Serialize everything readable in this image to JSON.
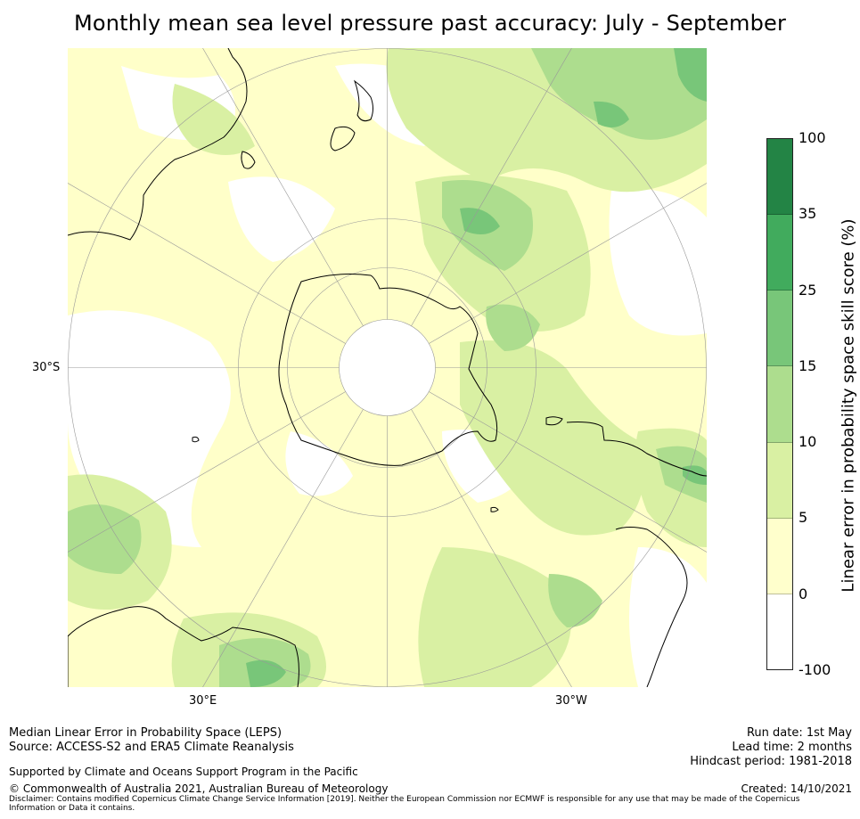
{
  "title": "Monthly mean sea level pressure past accuracy: July - September",
  "map": {
    "lat_label": "30°S",
    "lon_labels": [
      "30°E",
      "30°W"
    ]
  },
  "colorbar": {
    "label": "Linear error in probability space skill score (%)",
    "ticks": [
      "100",
      "35",
      "25",
      "15",
      "10",
      "5",
      "0",
      "-100"
    ],
    "colors_top_to_bottom": [
      "#238445",
      "#41ab5d",
      "#78c679",
      "#addd8e",
      "#d9f0a3",
      "#ffffcc",
      "#ffffff"
    ]
  },
  "footer": {
    "left_lines": [
      "Median Linear Error in Probability Space (LEPS)",
      "Source: ACCESS-S2 and ERA5 Climate Reanalysis"
    ],
    "support": "Supported by Climate and Oceans Support Program in the Pacific",
    "copyright": "© Commonwealth of Australia 2021, Australian Bureau of Meteorology",
    "disclaimer": "Disclaimer: Contains modified Copernicus Climate Change Service Information [2019]. Neither the European Commission nor ECMWF is responsible for any use that may be made of the Copernicus Information or Data it contains.",
    "right_lines": [
      "Run date: 1st May",
      "Lead time: 2 months",
      "Hindcast period: 1981-2018"
    ],
    "created": "Created: 14/10/2021"
  }
}
